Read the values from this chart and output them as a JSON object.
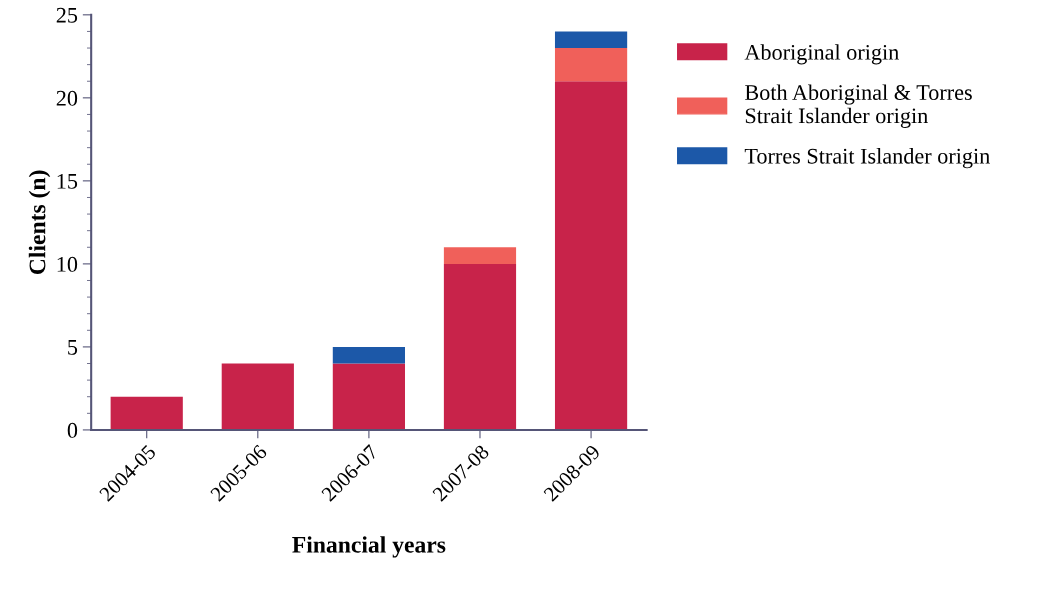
{
  "chart_data": {
    "type": "bar",
    "stacked": true,
    "xlabel": "Financial years",
    "ylabel": "Clients (n)",
    "categories": [
      "2004-05",
      "2005-06",
      "2006-07",
      "2007-08",
      "2008-09"
    ],
    "series": [
      {
        "name": "Aboriginal origin",
        "color": "#c8234a",
        "values": [
          2,
          4,
          4,
          10,
          21
        ]
      },
      {
        "name": "Both Aboriginal & Torres\nStrait Islander origin",
        "color": "#f0605a",
        "values": [
          0,
          0,
          0,
          1,
          2
        ]
      },
      {
        "name": "Torres Strait Islander origin",
        "color": "#1c58a8",
        "values": [
          0,
          0,
          1,
          0,
          1
        ]
      }
    ],
    "ylim": [
      0,
      25
    ],
    "yticks": [
      0,
      5,
      10,
      15,
      20,
      25
    ],
    "grid": false,
    "legend": "right"
  }
}
